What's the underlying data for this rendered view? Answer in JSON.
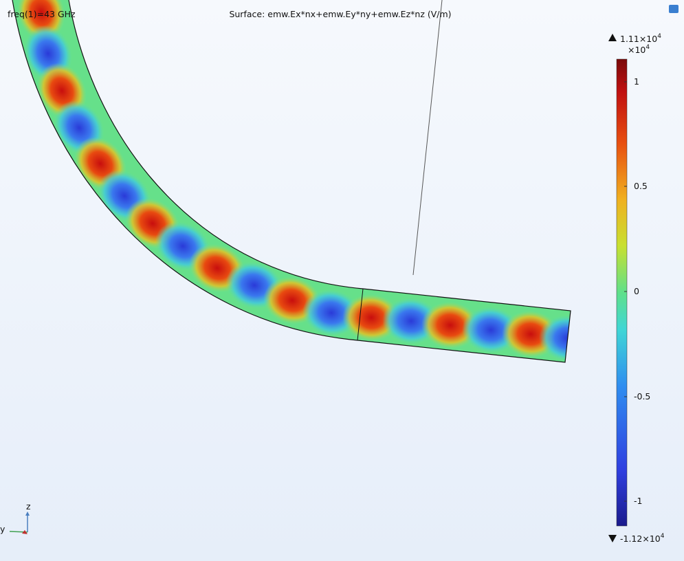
{
  "plot": {
    "title": "Surface: emw.Ex*nx+emw.Ey*ny+emw.Ez*nz (V/m)",
    "parameter": "freq(1)=43 GHz"
  },
  "colorbar": {
    "max": {
      "base": "1.11×10",
      "exponent": "4"
    },
    "multiplier": {
      "base": "×10",
      "exponent": "4"
    },
    "min": {
      "base": "-1.12×10",
      "exponent": "4"
    },
    "ticks": [
      "1",
      "0.5",
      "0",
      "-0.5",
      "-1"
    ]
  },
  "axes": {
    "z": "z",
    "y": "y"
  }
}
